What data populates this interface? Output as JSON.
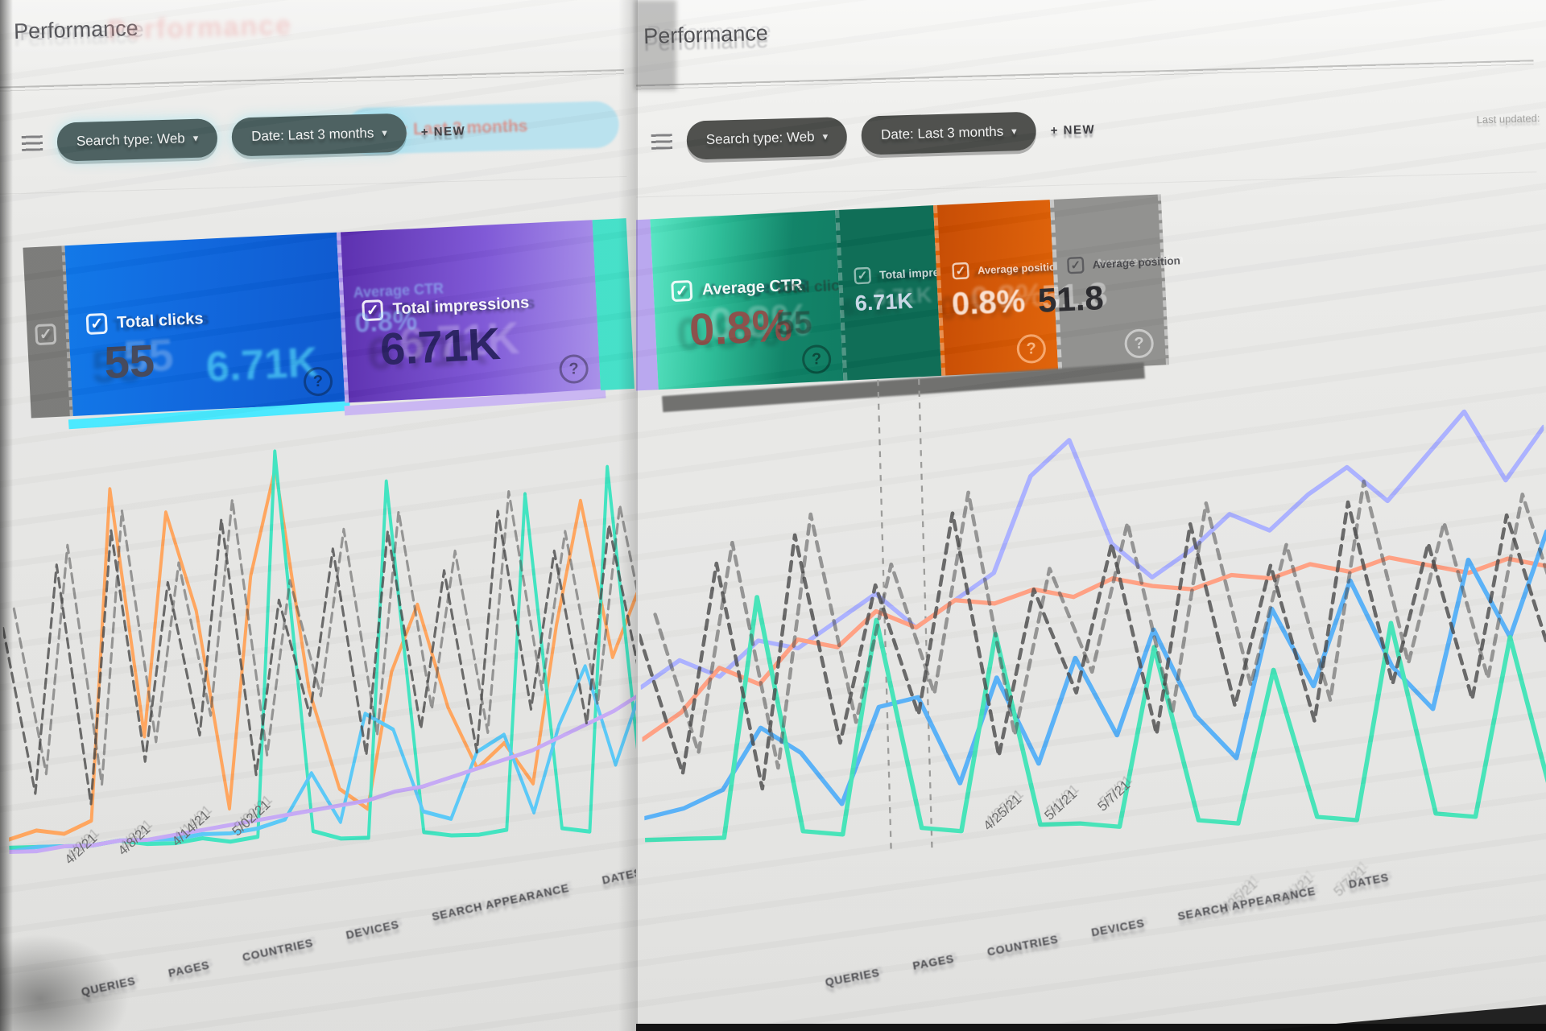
{
  "header": {
    "title": "Performance",
    "last_updated": "Last updated:"
  },
  "filter_bar": {
    "filter_icon": "filter-lines-icon",
    "chips": [
      {
        "label": "Search type: Web",
        "arrow": "▾"
      },
      {
        "label": "Date: Last 3 months",
        "arrow": "▾"
      }
    ],
    "new_button_label": "+ NEW",
    "ghost_chip_label": "Date: Last 3 months"
  },
  "metrics": [
    {
      "id": "clicks",
      "label": "Total clicks",
      "value": "55",
      "color": "#0d66dd"
    },
    {
      "id": "impressions",
      "label": "Total impressions",
      "value": "6.71K",
      "color": "#6a3ab2"
    },
    {
      "id": "ctr",
      "label": "Average CTR",
      "value": "0.8%",
      "color": "#12a183"
    },
    {
      "id": "position",
      "label": "Average position",
      "value": "51.8",
      "color": "#e8710a"
    }
  ],
  "card_icons": {
    "checkbox": "✓",
    "help": "?"
  },
  "tabs": [
    "QUERIES",
    "PAGES",
    "COUNTRIES",
    "DEVICES",
    "SEARCH APPEARANCE",
    "DATES"
  ],
  "chart_data": [
    {
      "panel": "left",
      "type": "line",
      "title": "",
      "xlabel": "",
      "ylabel": "",
      "ylim": [
        0,
        100
      ],
      "grid": false,
      "legend_position": "none",
      "x_labels": [
        "4/2/21",
        "4/8/21",
        "4/14/21",
        "5/02/21"
      ],
      "series": [
        {
          "name": "Average position",
          "color": "#ffa45c",
          "width": 5,
          "values": [
            4,
            6,
            5,
            8,
            88,
            28,
            82,
            58,
            10,
            66,
            92,
            38,
            14,
            9,
            42,
            58,
            33,
            18,
            24,
            14,
            52,
            82,
            44,
            60
          ]
        },
        {
          "name": "Average CTR",
          "color": "#3fe3c0",
          "width": 5,
          "values": [
            2,
            2,
            2,
            2,
            3,
            2,
            2,
            3,
            2,
            3,
            96,
            4,
            2,
            2,
            88,
            3,
            2,
            2,
            3,
            84,
            3,
            2,
            90,
            6
          ]
        },
        {
          "name": "Total clicks",
          "color": "#59c8f7",
          "width": 5,
          "values": [
            1,
            2,
            2,
            2,
            3,
            3,
            3,
            4,
            4,
            5,
            7,
            18,
            6,
            32,
            28,
            8,
            6,
            22,
            26,
            7,
            28,
            42,
            18,
            36
          ]
        },
        {
          "name": "Total impressions",
          "color": "#c5a8f5",
          "width": 5,
          "values": [
            1,
            1,
            2,
            2,
            3,
            3,
            4,
            5,
            6,
            7,
            8,
            9,
            10,
            11,
            13,
            14,
            16,
            18,
            20,
            22,
            25,
            28,
            31,
            35
          ]
        },
        {
          "name": "ghost-exposure",
          "color": "#474747",
          "width": 4,
          "dash": "11 8",
          "opacity": 0.8,
          "ghost_offset": [
            18,
            -24
          ],
          "values": [
            55,
            15,
            70,
            12,
            78,
            22,
            65,
            28,
            80,
            18,
            60,
            32,
            72,
            22,
            76,
            28,
            66,
            22,
            80,
            32,
            70,
            28,
            76,
            38
          ]
        }
      ]
    },
    {
      "panel": "right",
      "type": "line",
      "title": "",
      "xlabel": "",
      "ylabel": "",
      "ylim": [
        0,
        100
      ],
      "grid": false,
      "legend_position": "none",
      "x_labels": [
        "4/25/21",
        "5/1/21",
        "5/7/21"
      ],
      "vlines": [
        0.27,
        0.315
      ],
      "series": [
        {
          "name": "Total impressions",
          "color": "#aab0ff",
          "width": 5,
          "values": [
            38,
            44,
            40,
            48,
            46,
            52,
            58,
            50,
            56,
            62,
            84,
            92,
            68,
            60,
            66,
            74,
            70,
            78,
            84,
            76,
            86,
            96,
            80,
            92
          ]
        },
        {
          "name": "Average position",
          "color": "#ff9f82",
          "width": 5,
          "values": [
            26,
            32,
            42,
            38,
            48,
            46,
            54,
            50,
            56,
            55,
            58,
            56,
            60,
            58,
            57,
            60,
            59,
            62,
            60,
            63,
            61,
            59,
            62,
            60
          ]
        },
        {
          "name": "Total clicks",
          "color": "#58b0f7",
          "width": 5,
          "values": [
            8,
            10,
            14,
            28,
            22,
            10,
            32,
            34,
            14,
            38,
            18,
            42,
            24,
            48,
            28,
            18,
            52,
            34,
            58,
            38,
            28,
            62,
            44,
            68
          ]
        },
        {
          "name": "Average CTR",
          "color": "#45e3b8",
          "width": 5,
          "values": [
            3,
            3,
            3,
            58,
            4,
            3,
            52,
            4,
            3,
            48,
            4,
            4,
            3,
            44,
            4,
            3,
            38,
            4,
            3,
            48,
            4,
            3,
            44,
            5
          ]
        },
        {
          "name": "ghost-exposure",
          "color": "#474747",
          "width": 4,
          "dash": "11 8",
          "opacity": 0.8,
          "ghost_offset": [
            18,
            -24
          ],
          "values": [
            50,
            18,
            66,
            14,
            72,
            24,
            60,
            30,
            76,
            20,
            58,
            34,
            68,
            24,
            72,
            30,
            62,
            26,
            76,
            34,
            66,
            30,
            72,
            40
          ]
        }
      ]
    }
  ]
}
